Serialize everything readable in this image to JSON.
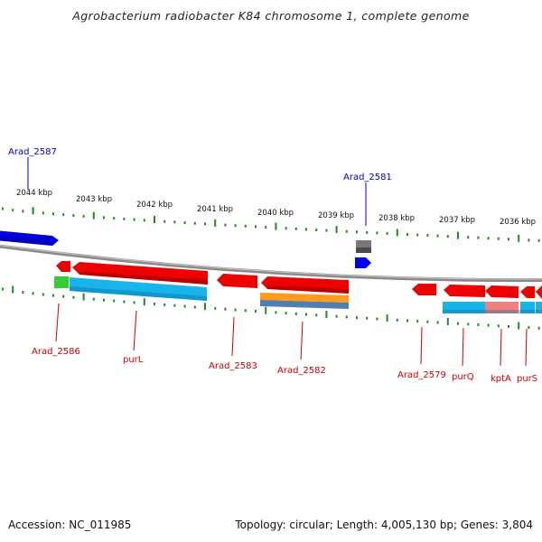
{
  "title": "Agrobacterium radiobacter K84 chromosome 1, complete genome",
  "accession": "Accession: NC_011985",
  "stats": "Topology: circular; Length: 4,005,130 bp; Genes: 3,804",
  "scale_labels": [
    "2044 kbp",
    "2043 kbp",
    "2042 kbp",
    "2041 kbp",
    "2040 kbp",
    "2039 kbp",
    "2038 kbp",
    "2037 kbp",
    "2036 kbp"
  ],
  "upper_gene_labels": [
    "Arad_2587",
    "Arad_2581"
  ],
  "lower_gene_labels": [
    "Arad_2586",
    "purL",
    "Arad_2583",
    "Arad_2582",
    "Arad_2579",
    "purQ",
    "kptA",
    "purS"
  ],
  "colors": {
    "upper_gene": "#0000cc",
    "lower_gene": "#cc0000",
    "backbone": "#8a8a8a",
    "tick": "#228b22",
    "cds_red": "#e60000",
    "feature_cyan": "#18b4ea",
    "feature_orange": "#ff9a1a",
    "feature_steel": "#4f7fb0",
    "feature_green": "#33cc33",
    "feature_pink": "#f08080",
    "feature_grey": "#777777"
  }
}
